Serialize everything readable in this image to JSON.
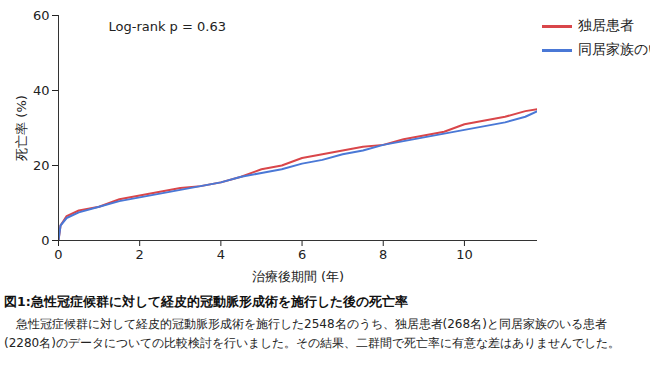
{
  "chart_data": {
    "type": "line",
    "title": "図1:急性冠症候群に対して経皮的冠動脈形成術を施行した後の死亡率",
    "caption": "急性冠症候群に対して経皮的冠動脈形成術を施行した2548名のうち、独居患者(268名)と同居家族のいる患者(2280名)のデータについての比較検討を行いました。その結果、二群間で死亡率に有意な差はありませんでした。",
    "annotations": [
      "Log-rank p = 0.63"
    ],
    "x_label": "治療後期間 (年)",
    "y_label": "死亡率 (%)",
    "x": [
      0,
      0.05,
      0.2,
      0.5,
      1,
      1.5,
      2,
      2.5,
      3,
      3.5,
      4,
      4.5,
      5,
      5.5,
      6,
      6.5,
      7,
      7.5,
      8,
      8.5,
      9,
      9.5,
      10,
      10.5,
      11,
      11.5,
      11.8
    ],
    "series": [
      {
        "name": "独居患者",
        "color": "#d9464a",
        "values": [
          0,
          4,
          6.5,
          8,
          9,
          11,
          12,
          13,
          14,
          14.5,
          15.5,
          17,
          19,
          20,
          22,
          23,
          24,
          25,
          25.5,
          27,
          28,
          29,
          31,
          32,
          33,
          34.5,
          35
        ]
      },
      {
        "name": "同居家族のいる患者",
        "color": "#4a78d6",
        "values": [
          0,
          4,
          6,
          7.5,
          9,
          10.5,
          11.5,
          12.5,
          13.5,
          14.5,
          15.5,
          17,
          18,
          19,
          20.5,
          21.5,
          23,
          24,
          25.5,
          26.5,
          27.5,
          28.5,
          29.5,
          30.5,
          31.5,
          33,
          34.5
        ]
      }
    ],
    "xlim": [
      0,
      11.8
    ],
    "xticks": [
      0,
      2,
      4,
      6,
      8,
      10
    ],
    "ylim": [
      0,
      60
    ],
    "yticks": [
      0,
      20,
      40,
      60
    ],
    "grid": false,
    "legend": "right"
  }
}
